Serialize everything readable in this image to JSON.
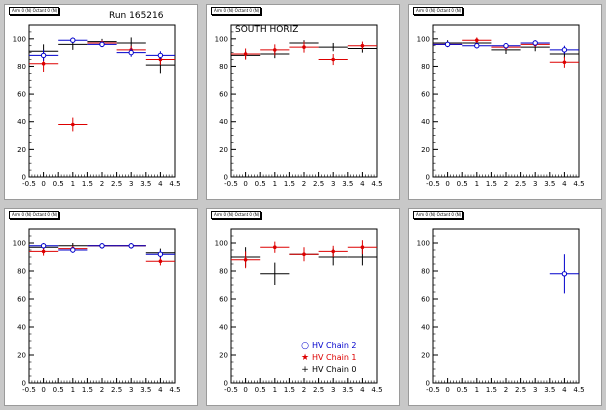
{
  "canvas": {
    "background": "#c8c8c8"
  },
  "colors": {
    "chain2": "#0000cc",
    "chain1": "#dd0000",
    "chain0": "#000000"
  },
  "legend": {
    "entries": [
      {
        "label": "HV Chain 2",
        "marker": "○",
        "color": "#0000cc"
      },
      {
        "label": "HV Chain 1",
        "marker": "★",
        "color": "#dd0000"
      },
      {
        "label": "HV Chain 0",
        "marker": "+",
        "color": "#000000"
      }
    ]
  },
  "chart_data": [
    {
      "type": "scatter",
      "title": "Arm 0 (N) Octant 0 (N) Panel 0",
      "label": "Run 165216",
      "xlim": [
        -0.5,
        4.5
      ],
      "ylim": [
        0,
        110
      ],
      "xticks": [
        "-0.5",
        "0",
        "0.5",
        "1",
        "1.5",
        "2",
        "2.5",
        "3",
        "3.5",
        "4",
        "4.5"
      ],
      "yticks": [
        "0",
        "20",
        "40",
        "60",
        "80",
        "100"
      ],
      "series": [
        {
          "key": "chain2",
          "x": [
            0,
            1,
            2,
            3,
            4
          ],
          "y": [
            88,
            99,
            96,
            90,
            88
          ],
          "yerr": [
            4,
            2,
            2,
            3,
            3
          ]
        },
        {
          "key": "chain1",
          "x": [
            0,
            1,
            2,
            3,
            4
          ],
          "y": [
            82,
            38,
            97,
            92,
            85
          ],
          "yerr": [
            6,
            5,
            2,
            3,
            4
          ]
        },
        {
          "key": "chain0",
          "x": [
            0,
            1,
            2,
            3,
            4
          ],
          "y": [
            91,
            96,
            98,
            97,
            81
          ],
          "yerr": [
            5,
            4,
            2,
            4,
            6
          ]
        }
      ]
    },
    {
      "type": "scatter",
      "title": "Arm 0 (N) Octant 0 (N) Panel 1",
      "label": "SOUTH HORIZ",
      "xlim": [
        -0.5,
        4.5
      ],
      "ylim": [
        0,
        110
      ],
      "xticks": [
        "-0.5",
        "0",
        "0.5",
        "1",
        "1.5",
        "2",
        "2.5",
        "3",
        "3.5",
        "4",
        "4.5"
      ],
      "yticks": [
        "0",
        "20",
        "40",
        "60",
        "80",
        "100"
      ],
      "series": [
        {
          "key": "chain2",
          "x": [],
          "y": [],
          "yerr": []
        },
        {
          "key": "chain1",
          "x": [
            0,
            1,
            2,
            3,
            4
          ],
          "y": [
            89,
            92,
            94,
            85,
            95
          ],
          "yerr": [
            4,
            4,
            4,
            4,
            3
          ]
        },
        {
          "key": "chain0",
          "x": [
            0,
            1,
            2,
            3,
            4
          ],
          "y": [
            88,
            89,
            97,
            94,
            93
          ],
          "yerr": [
            3,
            3,
            2,
            3,
            3
          ]
        }
      ]
    },
    {
      "type": "scatter",
      "title": "Arm 0 (N) Octant 0 (N) Panel 2",
      "label": "",
      "xlim": [
        -0.5,
        4.5
      ],
      "ylim": [
        0,
        110
      ],
      "xticks": [
        "-0.5",
        "0",
        "0.5",
        "1",
        "1.5",
        "2",
        "2.5",
        "3",
        "3.5",
        "4",
        "4.5"
      ],
      "yticks": [
        "0",
        "20",
        "40",
        "60",
        "80",
        "100"
      ],
      "series": [
        {
          "key": "chain2",
          "x": [
            0,
            1,
            2,
            3,
            4
          ],
          "y": [
            96,
            95,
            95,
            97,
            92
          ],
          "yerr": [
            2,
            2,
            2,
            2,
            3
          ]
        },
        {
          "key": "chain1",
          "x": [
            0,
            1,
            2,
            3,
            4
          ],
          "y": [
            96,
            99,
            94,
            96,
            83
          ],
          "yerr": [
            2,
            2,
            2,
            2,
            4
          ]
        },
        {
          "key": "chain0",
          "x": [
            0,
            1,
            2,
            3,
            4
          ],
          "y": [
            97,
            97,
            92,
            94,
            89
          ],
          "yerr": [
            2,
            2,
            3,
            3,
            3
          ]
        }
      ]
    },
    {
      "type": "scatter",
      "title": "Arm 0 (N) Octant 0 (N) Panel 3",
      "label": "",
      "xlim": [
        -0.5,
        4.5
      ],
      "ylim": [
        0,
        110
      ],
      "xticks": [
        "-0.5",
        "0",
        "0.5",
        "1",
        "1.5",
        "2",
        "2.5",
        "3",
        "3.5",
        "4",
        "4.5"
      ],
      "yticks": [
        "0",
        "20",
        "40",
        "60",
        "80",
        "100"
      ],
      "series": [
        {
          "key": "chain2",
          "x": [
            0,
            1,
            2,
            3,
            4
          ],
          "y": [
            98,
            95,
            98,
            98,
            92
          ],
          "yerr": [
            2,
            2,
            2,
            2,
            3
          ]
        },
        {
          "key": "chain1",
          "x": [
            0,
            1,
            2,
            3,
            4
          ],
          "y": [
            94,
            96,
            98,
            98,
            87
          ],
          "yerr": [
            3,
            2,
            2,
            2,
            3
          ]
        },
        {
          "key": "chain0",
          "x": [
            0,
            1,
            2,
            3,
            4
          ],
          "y": [
            97,
            98,
            98,
            98,
            93
          ],
          "yerr": [
            2,
            2,
            1,
            1,
            3
          ]
        }
      ]
    },
    {
      "type": "scatter",
      "title": "Arm 0 (N) Octant 0 (N) Panel 4",
      "label": "",
      "xlim": [
        -0.5,
        4.5
      ],
      "ylim": [
        0,
        110
      ],
      "xticks": [
        "-0.5",
        "0",
        "0.5",
        "1",
        "1.5",
        "2",
        "2.5",
        "3",
        "3.5",
        "4",
        "4.5"
      ],
      "yticks": [
        "0",
        "20",
        "40",
        "60",
        "80",
        "100"
      ],
      "series": [
        {
          "key": "chain2",
          "x": [],
          "y": [],
          "yerr": []
        },
        {
          "key": "chain1",
          "x": [
            0,
            1,
            2,
            3,
            4
          ],
          "y": [
            88,
            97,
            92,
            94,
            97
          ],
          "yerr": [
            6,
            4,
            5,
            4,
            5
          ]
        },
        {
          "key": "chain0",
          "x": [
            0,
            1,
            2,
            3,
            4
          ],
          "y": [
            90,
            78,
            92,
            90,
            90
          ],
          "yerr": [
            7,
            8,
            4,
            6,
            6
          ]
        }
      ]
    },
    {
      "type": "scatter",
      "title": "Arm 0 (N) Octant 0 (N) Panel 5",
      "label": "",
      "xlim": [
        -0.5,
        4.5
      ],
      "ylim": [
        0,
        110
      ],
      "xticks": [
        "-0.5",
        "0",
        "0.5",
        "1",
        "1.5",
        "2",
        "2.5",
        "3",
        "3.5",
        "4",
        "4.5"
      ],
      "yticks": [
        "0",
        "20",
        "40",
        "60",
        "80",
        "100"
      ],
      "series": [
        {
          "key": "chain2",
          "x": [
            4
          ],
          "y": [
            78
          ],
          "yerr": [
            14
          ]
        },
        {
          "key": "chain1",
          "x": [],
          "y": [],
          "yerr": []
        },
        {
          "key": "chain0",
          "x": [],
          "y": [],
          "yerr": []
        }
      ]
    }
  ]
}
